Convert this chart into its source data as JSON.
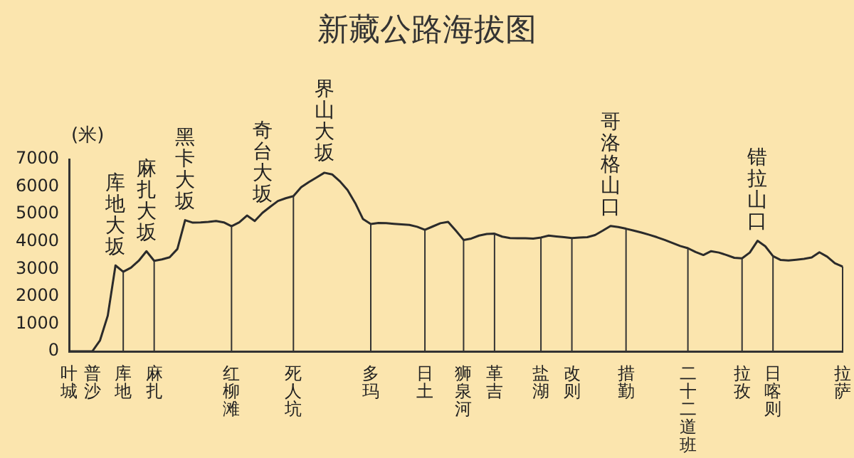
{
  "chart_data": {
    "type": "line",
    "title": "新藏公路海拔图",
    "ylabel": "(米)",
    "categories": [
      "叶城",
      null,
      null,
      "普沙",
      null,
      null,
      null,
      "库地",
      null,
      null,
      null,
      "麻扎",
      null,
      null,
      null,
      null,
      null,
      null,
      null,
      null,
      null,
      "红柳滩",
      null,
      null,
      null,
      null,
      null,
      null,
      null,
      "死人坑",
      null,
      null,
      null,
      null,
      null,
      null,
      null,
      null,
      null,
      "多玛",
      null,
      null,
      null,
      null,
      null,
      null,
      "日土",
      null,
      null,
      null,
      null,
      "狮泉河",
      null,
      null,
      null,
      "革吉",
      null,
      null,
      null,
      null,
      null,
      "盐湖",
      null,
      null,
      null,
      "改则",
      null,
      null,
      null,
      null,
      null,
      null,
      "措勤",
      null,
      null,
      null,
      null,
      null,
      null,
      null,
      "二十二道班",
      null,
      null,
      null,
      null,
      null,
      null,
      "拉孜",
      null,
      null,
      null,
      "日喀则",
      null,
      null,
      null,
      null,
      null,
      null,
      null,
      null,
      "拉萨"
    ],
    "ylim": [
      0,
      7000
    ],
    "yticks": [
      0,
      1000,
      2000,
      3000,
      4000,
      5000,
      6000,
      7000
    ],
    "grid": "x",
    "legend": false,
    "marker": "none",
    "line_style": "solid",
    "series": [
      {
        "color": "#2b2b2b",
        "values": [
          0,
          0,
          0,
          0,
          400,
          1300,
          3130,
          2900,
          3050,
          3300,
          3650,
          3300,
          3350,
          3430,
          3730,
          4780,
          4690,
          4700,
          4720,
          4750,
          4700,
          4560,
          4700,
          4950,
          4750,
          5050,
          5270,
          5480,
          5580,
          5660,
          5980,
          6170,
          6340,
          6510,
          6450,
          6200,
          5880,
          5400,
          4820,
          4640,
          4680,
          4670,
          4650,
          4630,
          4610,
          4540,
          4430,
          4550,
          4670,
          4720,
          4400,
          4060,
          4110,
          4220,
          4280,
          4290,
          4180,
          4130,
          4120,
          4120,
          4110,
          4150,
          4220,
          4190,
          4160,
          4130,
          4150,
          4160,
          4240,
          4400,
          4570,
          4530,
          4470,
          4400,
          4330,
          4250,
          4160,
          4060,
          3950,
          3840,
          3760,
          3620,
          3510,
          3650,
          3600,
          3510,
          3410,
          3390,
          3600,
          4030,
          3830,
          3470,
          3330,
          3310,
          3340,
          3370,
          3420,
          3610,
          3450,
          3210,
          3090
        ],
        "value_labels": [
          null,
          null,
          null,
          null,
          null,
          null,
          "库地大坂",
          null,
          null,
          null,
          "麻扎大坂",
          null,
          null,
          null,
          null,
          "黑卡大坂",
          null,
          null,
          null,
          null,
          null,
          null,
          null,
          null,
          null,
          "奇台大坂",
          null,
          null,
          null,
          null,
          null,
          null,
          null,
          "界山大坂",
          null,
          null,
          null,
          null,
          null,
          null,
          null,
          null,
          null,
          null,
          null,
          null,
          null,
          null,
          null,
          null,
          null,
          null,
          null,
          null,
          null,
          null,
          null,
          null,
          null,
          null,
          null,
          null,
          null,
          null,
          null,
          null,
          null,
          null,
          null,
          null,
          "哥洛格山口",
          null,
          null,
          null,
          null,
          null,
          null,
          null,
          null,
          null,
          null,
          null,
          null,
          null,
          null,
          null,
          null,
          null,
          null,
          "错拉山口",
          null,
          null,
          null,
          null,
          null,
          null,
          null,
          null,
          null,
          null,
          null
        ]
      }
    ]
  }
}
